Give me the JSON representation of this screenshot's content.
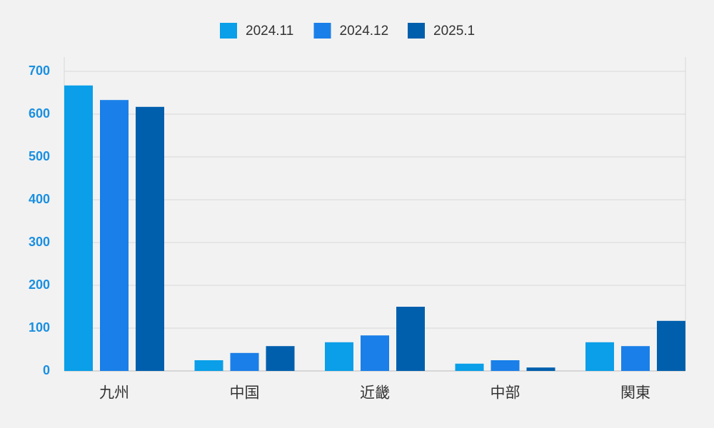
{
  "chart_data": {
    "type": "bar",
    "categories": [
      "九州",
      "中国",
      "近畿",
      "中部",
      "関東"
    ],
    "series": [
      {
        "name": "2024.11",
        "color": "#0a9fe8",
        "values": [
          667,
          25,
          67,
          17,
          67
        ]
      },
      {
        "name": "2024.12",
        "color": "#1a7fe8",
        "values": [
          633,
          42,
          83,
          25,
          58
        ]
      },
      {
        "name": "2025.1",
        "color": "#005fad",
        "values": [
          617,
          58,
          150,
          8,
          117
        ]
      }
    ],
    "ylim": [
      0,
      700
    ],
    "yticks": [
      0,
      100,
      200,
      300,
      400,
      500,
      600,
      700
    ],
    "grid": true,
    "legend": "top"
  }
}
